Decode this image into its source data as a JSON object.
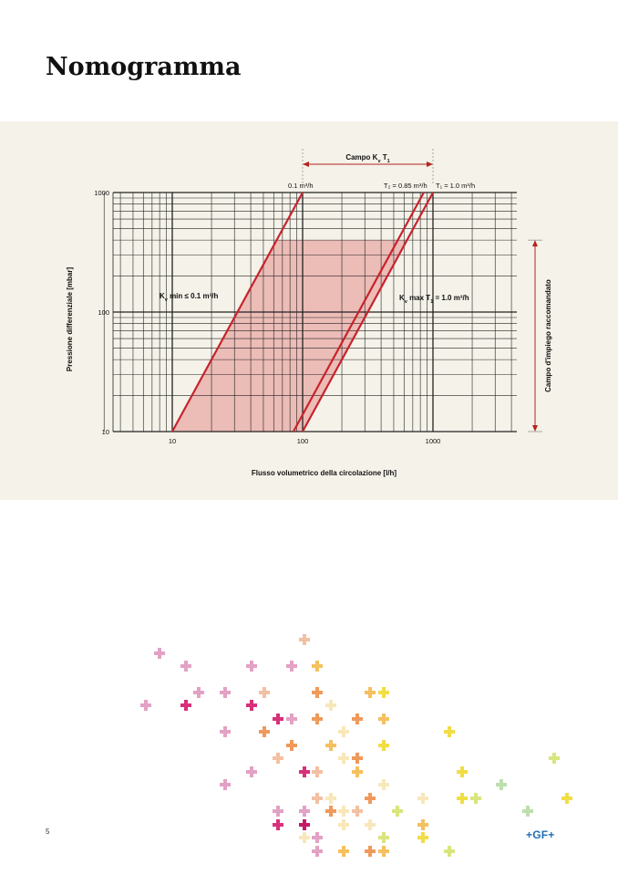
{
  "page": {
    "title": "Nomogramma",
    "page_number": "5",
    "brand": "+GF+"
  },
  "colors": {
    "panel_bg": "#f4f2e9",
    "grid": "#222222",
    "curve": "#c8232c",
    "shade": "#e9a9a6",
    "arrow": "#b5241f"
  },
  "chart_data": {
    "type": "line",
    "x_scale": "log",
    "y_scale": "log",
    "xlim": [
      3,
      4500
    ],
    "ylim": [
      10,
      1000
    ],
    "xlabel": "Flusso volumetrico della circolazione [l/h]",
    "ylabel": "Pressione differenziale [mbar]",
    "x_ticks": [
      "10",
      "100",
      "1000"
    ],
    "y_ticks": [
      "10",
      "100",
      "1000"
    ],
    "grid": true,
    "series": [
      {
        "name": "0.1 m³/h",
        "points": [
          [
            10,
            10
          ],
          [
            100,
            1000
          ]
        ]
      },
      {
        "name": "T₂ = 0.85 m³/h",
        "points": [
          [
            85,
            10
          ],
          [
            850,
            1000
          ]
        ]
      },
      {
        "name": "T₁ = 1.0 m³/h",
        "points": [
          [
            100,
            10
          ],
          [
            1000,
            1000
          ]
        ]
      }
    ],
    "shaded_region": {
      "y_range": [
        10,
        400
      ],
      "bounds": [
        "0.1 m³/h",
        "T₁ = 1.0 m³/h"
      ]
    },
    "annotations": {
      "kv_range_label_pre": "Campo K",
      "kv_range_label_sub_v": "v",
      "kv_range_label_mid": " T",
      "kv_range_label_sub_1": "1",
      "kv_range": [
        100,
        1000
      ],
      "kv_min_pre": "K",
      "kv_min_sub": "v",
      "kv_min_post": " min ≤ 0.1 m³/h",
      "kv_max_pre": "K",
      "kv_max_sub": "v",
      "kv_max_post": " max T",
      "kv_max_sub2": "1",
      "kv_max_post2": " = 1.0 m³/h",
      "recommended_range_label": "Campo d'impiego raccomandato",
      "recommended_range": [
        10,
        400
      ]
    }
  },
  "decor": {
    "pattern_colors": [
      "#e3a1c4",
      "#d8307a",
      "#ef9a5c",
      "#f5c05f",
      "#f1dd45",
      "#d9e57d",
      "#bddfae",
      "#f8e7b9",
      "#f3c0a3",
      "#c41a64"
    ]
  }
}
